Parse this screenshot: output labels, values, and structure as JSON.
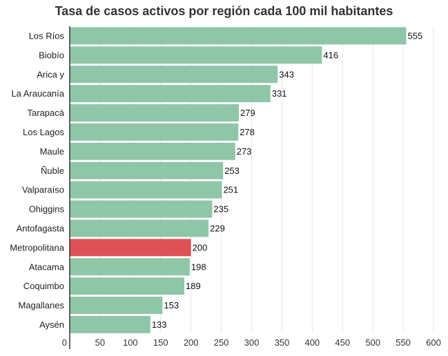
{
  "chart_data": {
    "type": "bar",
    "orientation": "horizontal",
    "title": "Tasa de casos activos por región cada 100 mil habitantes",
    "xlabel": "",
    "ylabel": "",
    "categories": [
      "Los Ríos",
      "Biobío",
      "Arica y",
      "La Araucanía",
      "Tarapacá",
      "Los Lagos",
      "Maule",
      "Ñuble",
      "Valparaíso",
      "Ohiggins",
      "Antofagasta",
      "Metropolitana",
      "Atacama",
      "Coquimbo",
      "Magallanes",
      "Aysén"
    ],
    "values": [
      555,
      416,
      343,
      331,
      279,
      278,
      273,
      253,
      251,
      235,
      229,
      200,
      198,
      189,
      153,
      133
    ],
    "highlight_category": "Metropolitana",
    "xlim": [
      0,
      600
    ],
    "xticks": [
      0,
      50,
      100,
      150,
      200,
      250,
      300,
      350,
      400,
      450,
      500,
      550,
      600
    ],
    "grid": "vertical",
    "colors": {
      "bar": "#8fc6a7",
      "highlight": "#de5257",
      "grid": "#e6e6e6",
      "axis": "#333333"
    }
  }
}
